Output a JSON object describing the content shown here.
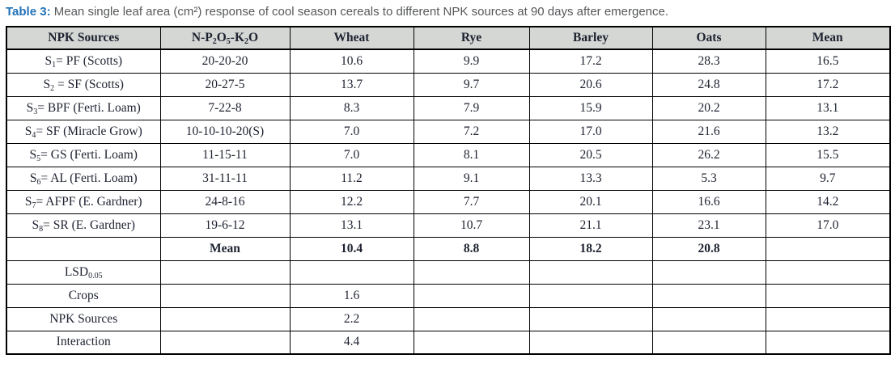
{
  "caption": {
    "label": "Table 3:",
    "text": "Mean single leaf area (cm²) response of cool season cereals to different NPK sources at 90 days after emergence."
  },
  "colors": {
    "caption_accent": "#2272b9",
    "caption_text": "#57585a",
    "header_bg": "#d4d7d4",
    "border": "#000000",
    "table_text": "#1e2230"
  },
  "table": {
    "columns": [
      "NPK Sources",
      "N-P~2~O~5~-K~2~O",
      "Wheat",
      "Rye",
      "Barley",
      "Oats",
      "Mean"
    ],
    "body_rows": [
      {
        "cells": [
          "S~1~= PF (Scotts)",
          "20-20-20",
          "10.6",
          "9.9",
          "17.2",
          "28.3",
          "16.5"
        ],
        "bold": false
      },
      {
        "cells": [
          "S~2~ = SF (Scotts)",
          "20-27-5",
          "13.7",
          "9.7",
          "20.6",
          "24.8",
          "17.2"
        ],
        "bold": false
      },
      {
        "cells": [
          "S~3~= BPF (Ferti. Loam)",
          "7-22-8",
          "8.3",
          "7.9",
          "15.9",
          "20.2",
          "13.1"
        ],
        "bold": false
      },
      {
        "cells": [
          "S~4~= SF (Miracle Grow)",
          "10-10-10-20(S)",
          "7.0",
          "7.2",
          "17.0",
          "21.6",
          "13.2"
        ],
        "bold": false
      },
      {
        "cells": [
          "S~5~= GS (Ferti. Loam)",
          "11-15-11",
          "7.0",
          "8.1",
          "20.5",
          "26.2",
          "15.5"
        ],
        "bold": false
      },
      {
        "cells": [
          "S~6~= AL (Ferti. Loam)",
          "31-11-11",
          "11.2",
          "9.1",
          "13.3",
          "5.3",
          "9.7"
        ],
        "bold": false
      },
      {
        "cells": [
          "S~7~= AFPF (E. Gardner)",
          "24-8-16",
          "12.2",
          "7.7",
          "20.1",
          "16.6",
          "14.2"
        ],
        "bold": false
      },
      {
        "cells": [
          "S~8~= SR (E. Gardner)",
          "19-6-12",
          "13.1",
          "10.7",
          "21.1",
          "23.1",
          "17.0"
        ],
        "bold": false
      },
      {
        "cells": [
          "",
          "Mean",
          "10.4",
          "8.8",
          "18.2",
          "20.8",
          ""
        ],
        "bold": true
      },
      {
        "cells": [
          "LSD~0.05~",
          "",
          "",
          "",
          "",
          "",
          ""
        ],
        "bold": false
      },
      {
        "cells": [
          "Crops",
          "",
          "1.6",
          "",
          "",
          "",
          ""
        ],
        "bold": false
      },
      {
        "cells": [
          "NPK Sources",
          "",
          "2.2",
          "",
          "",
          "",
          ""
        ],
        "bold": false
      },
      {
        "cells": [
          "Interaction",
          "",
          "4.4",
          "",
          "",
          "",
          ""
        ],
        "bold": false
      }
    ]
  }
}
